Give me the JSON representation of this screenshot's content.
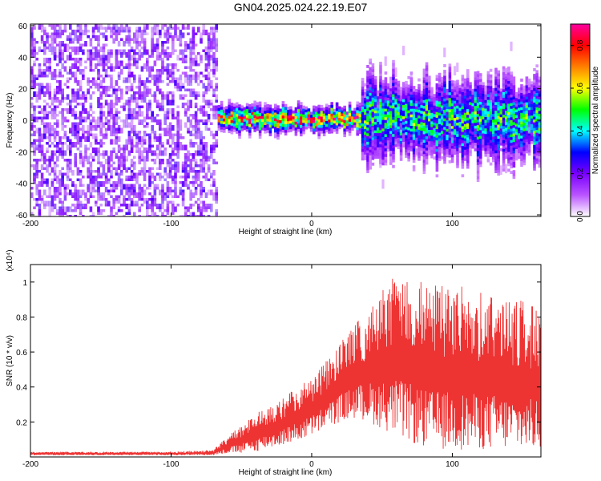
{
  "title": "GN04.2025.024.22.19.E07",
  "chart_data": [
    {
      "type": "heatmap",
      "name": "spectrogram",
      "xlabel": "Height of straight line (km)",
      "ylabel": "Frequency (Hz)",
      "xlim": [
        -200,
        163
      ],
      "ylim": [
        -61,
        61
      ],
      "xticks": [
        -200,
        -100,
        0,
        100
      ],
      "yticks": [
        -60,
        -40,
        -20,
        0,
        20,
        40,
        60
      ],
      "colorbar": {
        "label": "Normalized spectral amplitude",
        "range": [
          0,
          0.9
        ],
        "ticks": [
          0.0,
          0.2,
          0.4,
          0.6,
          0.8
        ],
        "colormap": [
          "#ffffff",
          "#ba55ff",
          "#7a00ff",
          "#0000ff",
          "#00ffff",
          "#00ff00",
          "#ffff00",
          "#ff8000",
          "#ff0000",
          "#ff00a0"
        ]
      },
      "regions": [
        {
          "x_range": [
            -200,
            -68
          ],
          "pattern": "broadband noise",
          "amplitude": [
            0.1,
            0.25
          ]
        },
        {
          "x_range": [
            -68,
            35
          ],
          "pattern": "narrow band near 0 Hz",
          "center_hz": 0,
          "half_width_hz": 7,
          "amplitude_peak": 0.8
        },
        {
          "x_range": [
            35,
            163
          ],
          "pattern": "broadened band",
          "center_hz": 0,
          "half_width_hz": 22,
          "amplitude_peak": 0.5
        }
      ]
    },
    {
      "type": "line",
      "name": "snr",
      "ylabel": "SNR (10 * v/v)",
      "y_multiplier": "(x10⁴)",
      "xlabel": "Height of straight line (km)",
      "xlim": [
        -200,
        163
      ],
      "ylim": [
        0,
        1.1
      ],
      "xticks": [
        -200,
        -100,
        0,
        100
      ],
      "yticks": [
        0.2,
        0.4,
        0.6,
        0.8,
        1.0
      ],
      "color": "#ee3333",
      "envelope": {
        "x": [
          -200,
          -150,
          -100,
          -70,
          -60,
          -50,
          -40,
          -30,
          -20,
          -10,
          0,
          10,
          20,
          30,
          40,
          50,
          60,
          70,
          80,
          90,
          100,
          110,
          120,
          130,
          140,
          150,
          163
        ],
        "y_min": [
          0.01,
          0.01,
          0.01,
          0.01,
          0.02,
          0.02,
          0.03,
          0.05,
          0.07,
          0.09,
          0.12,
          0.16,
          0.2,
          0.22,
          0.2,
          0.16,
          0.12,
          0.08,
          0.05,
          0.04,
          0.04,
          0.04,
          0.04,
          0.04,
          0.04,
          0.04,
          0.04
        ],
        "y_max": [
          0.03,
          0.03,
          0.03,
          0.04,
          0.12,
          0.18,
          0.25,
          0.3,
          0.34,
          0.4,
          0.46,
          0.55,
          0.65,
          0.75,
          0.85,
          0.95,
          1.05,
          1.05,
          1.0,
          1.0,
          1.0,
          0.97,
          0.95,
          0.95,
          0.92,
          0.9,
          0.85
        ]
      }
    }
  ]
}
